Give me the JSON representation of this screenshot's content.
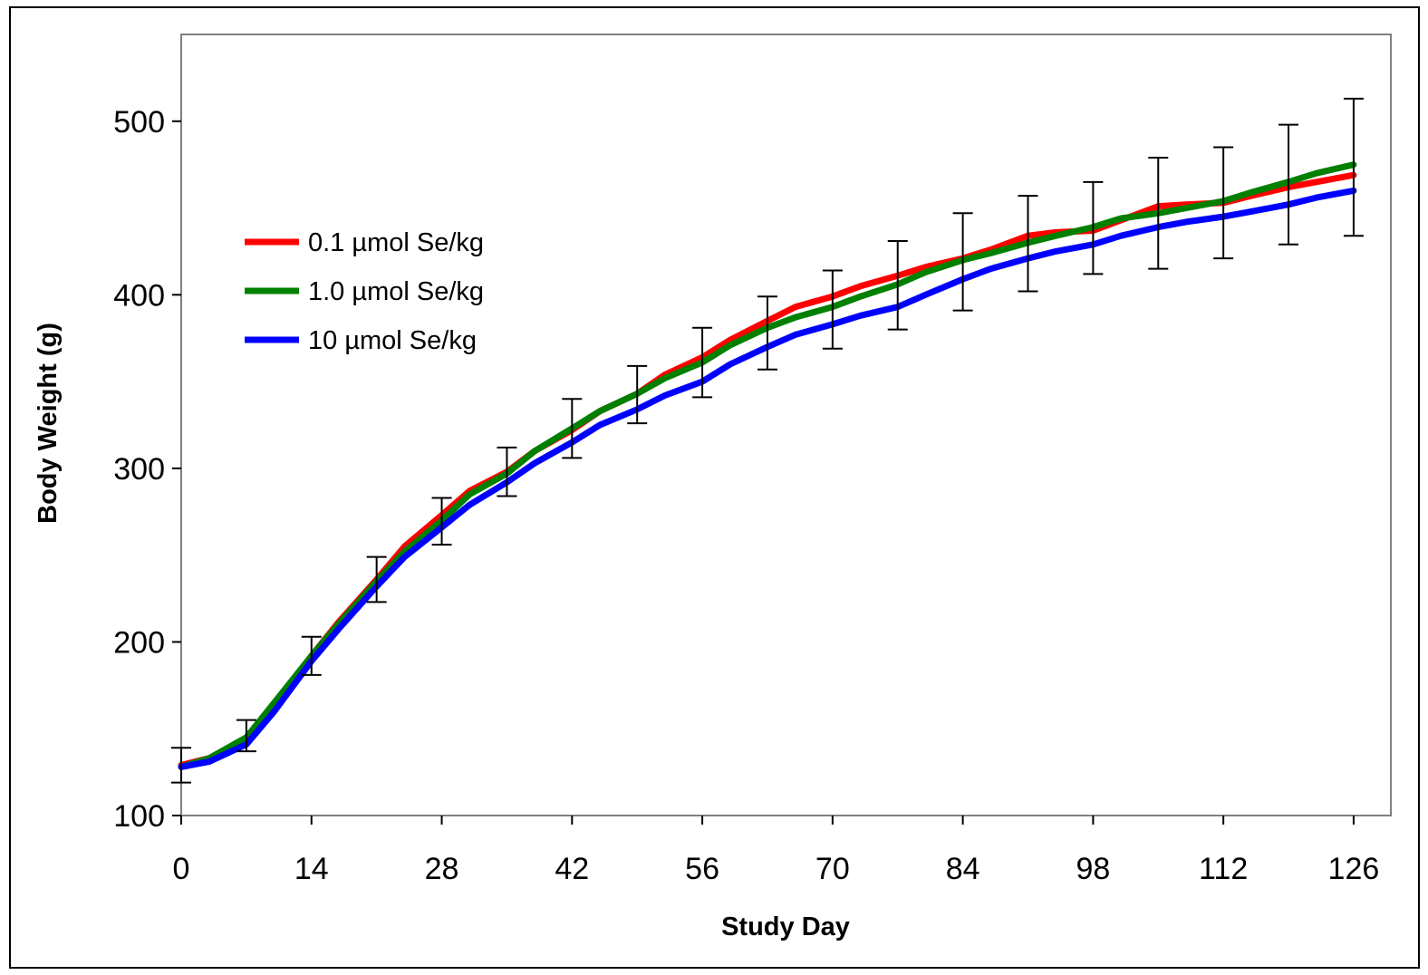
{
  "chart_data": {
    "type": "line",
    "title": "",
    "xlabel": "Study Day",
    "ylabel": "Body Weight  (g)",
    "xlim": [
      0,
      130
    ],
    "ylim": [
      100,
      550
    ],
    "xticks": [
      0,
      14,
      28,
      42,
      56,
      70,
      84,
      98,
      112,
      126
    ],
    "yticks": [
      100,
      200,
      300,
      400,
      500
    ],
    "grid": false,
    "legend_position": "left, upper-middle of plot area",
    "series": [
      {
        "name": "0.1 µmol Se/kg",
        "color": "#ff0000",
        "x": [
          0,
          3,
          7,
          10,
          14,
          17,
          21,
          24,
          28,
          31,
          35,
          38,
          42,
          45,
          49,
          52,
          56,
          59,
          63,
          66,
          70,
          73,
          77,
          80,
          84,
          87,
          91,
          94,
          98,
          101,
          105,
          108,
          112,
          115,
          119,
          122,
          126
        ],
        "values": [
          129,
          133,
          143,
          164,
          192,
          212,
          236,
          255,
          273,
          287,
          298,
          310,
          322,
          333,
          343,
          354,
          364,
          374,
          385,
          393,
          399,
          405,
          411,
          416,
          421,
          426,
          434,
          436,
          437,
          443,
          451,
          452,
          453,
          457,
          462,
          465,
          469
        ]
      },
      {
        "name": "1.0 µmol Se/kg",
        "color": "#008000",
        "x": [
          0,
          3,
          7,
          10,
          14,
          17,
          21,
          24,
          28,
          31,
          35,
          38,
          42,
          45,
          49,
          52,
          56,
          59,
          63,
          66,
          70,
          73,
          77,
          80,
          84,
          87,
          91,
          94,
          98,
          101,
          105,
          108,
          112,
          115,
          119,
          122,
          126
        ],
        "values": [
          128,
          133,
          145,
          165,
          192,
          211,
          235,
          252,
          270,
          285,
          297,
          310,
          323,
          333,
          343,
          352,
          361,
          371,
          381,
          387,
          393,
          399,
          406,
          413,
          420,
          424,
          430,
          434,
          439,
          444,
          447,
          450,
          454,
          459,
          465,
          470,
          475
        ]
      },
      {
        "name": "10 µmol Se/kg",
        "color": "#0000ff",
        "x": [
          0,
          3,
          7,
          10,
          14,
          17,
          21,
          24,
          28,
          31,
          35,
          38,
          42,
          45,
          49,
          52,
          56,
          59,
          63,
          66,
          70,
          73,
          77,
          80,
          84,
          87,
          91,
          94,
          98,
          101,
          105,
          108,
          112,
          115,
          119,
          122,
          126
        ],
        "values": [
          128,
          131,
          141,
          160,
          189,
          208,
          232,
          249,
          266,
          279,
          292,
          303,
          315,
          325,
          334,
          342,
          350,
          360,
          370,
          377,
          383,
          388,
          393,
          400,
          409,
          415,
          421,
          425,
          429,
          434,
          439,
          442,
          445,
          448,
          452,
          456,
          460
        ]
      }
    ],
    "error_bars": [
      {
        "x": 0,
        "low": 119,
        "high": 139
      },
      {
        "x": 7,
        "low": 137,
        "high": 155
      },
      {
        "x": 14,
        "low": 181,
        "high": 203
      },
      {
        "x": 21,
        "low": 223,
        "high": 249
      },
      {
        "x": 28,
        "low": 256,
        "high": 283
      },
      {
        "x": 35,
        "low": 284,
        "high": 312
      },
      {
        "x": 42,
        "low": 306,
        "high": 340
      },
      {
        "x": 49,
        "low": 326,
        "high": 359
      },
      {
        "x": 56,
        "low": 341,
        "high": 381
      },
      {
        "x": 63,
        "low": 357,
        "high": 399
      },
      {
        "x": 70,
        "low": 369,
        "high": 414
      },
      {
        "x": 77,
        "low": 380,
        "high": 431
      },
      {
        "x": 84,
        "low": 391,
        "high": 447
      },
      {
        "x": 91,
        "low": 402,
        "high": 457
      },
      {
        "x": 98,
        "low": 412,
        "high": 465
      },
      {
        "x": 105,
        "low": 415,
        "high": 479
      },
      {
        "x": 112,
        "low": 421,
        "high": 485
      },
      {
        "x": 119,
        "low": 429,
        "high": 498
      },
      {
        "x": 126,
        "low": 434,
        "high": 513
      }
    ]
  }
}
